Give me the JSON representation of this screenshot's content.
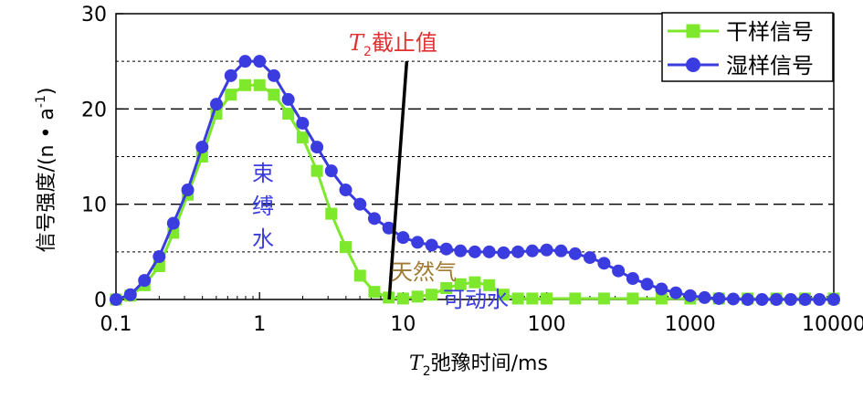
{
  "chart_data": {
    "type": "line",
    "title": "",
    "xlabel": {
      "italic": "T",
      "sub": "2",
      "rest": "弛豫时间/ms"
    },
    "ylabel": {
      "main": "信号强度/(n • a",
      "sup": "-1",
      "end": ")"
    },
    "x_scale": "log",
    "xlim": [
      0.1,
      10000
    ],
    "ylim": [
      0,
      30
    ],
    "x_ticks": [
      0.1,
      1,
      10,
      100,
      1000,
      10000
    ],
    "x_tick_labels": [
      "0.1",
      "1",
      "10",
      "100",
      "1000",
      "10000"
    ],
    "y_ticks": [
      0,
      10,
      20,
      30
    ],
    "y_tick_labels": [
      "0",
      "10",
      "20",
      "30"
    ],
    "grid_major_y": [
      10,
      20
    ],
    "grid_minor_y": [
      5,
      15,
      25
    ],
    "legend_position": "top-right",
    "series": [
      {
        "name": "干样信号",
        "color": "#7de82c",
        "marker": "square",
        "x": [
          0.1,
          0.126,
          0.158,
          0.2,
          0.251,
          0.316,
          0.398,
          0.501,
          0.631,
          0.794,
          1.0,
          1.259,
          1.585,
          1.995,
          2.512,
          3.162,
          3.981,
          5.012,
          6.31,
          7.943,
          10,
          12.6,
          15.8,
          20,
          25.1,
          31.6,
          39.8,
          50.1,
          63.1,
          79.4,
          100,
          158,
          251,
          398,
          631,
          1000,
          1585,
          2512,
          3981,
          6310,
          10000
        ],
        "y": [
          0,
          0.4,
          1.5,
          3.5,
          7.0,
          11.0,
          15.0,
          19.5,
          21.5,
          22.5,
          22.5,
          21.5,
          19.5,
          17.0,
          13.5,
          9.0,
          5.5,
          2.5,
          0.8,
          0.2,
          0.1,
          0.3,
          0.5,
          1.2,
          1.6,
          1.8,
          1.5,
          0.5,
          0.1,
          0.1,
          0.1,
          0.1,
          0.1,
          0.1,
          0.1,
          0.1,
          0.1,
          0.1,
          0.1,
          0.1,
          0.1
        ]
      },
      {
        "name": "湿样信号",
        "color": "#3b3ce0",
        "marker": "circle",
        "x": [
          0.1,
          0.126,
          0.158,
          0.2,
          0.251,
          0.316,
          0.398,
          0.501,
          0.631,
          0.794,
          1.0,
          1.259,
          1.585,
          1.995,
          2.512,
          3.162,
          3.981,
          5.012,
          6.31,
          7.943,
          10,
          12.6,
          15.8,
          20,
          25.1,
          31.6,
          39.8,
          50.1,
          63.1,
          79.4,
          100,
          126,
          158,
          200,
          251,
          316,
          398,
          501,
          631,
          794,
          1000,
          1259,
          1585,
          1995,
          2512,
          3162,
          3981,
          5012,
          6310,
          7943,
          10000
        ],
        "y": [
          0,
          0.5,
          2.0,
          4.5,
          8.0,
          11.5,
          16.0,
          20.5,
          23.5,
          25.0,
          25.0,
          23.5,
          21.0,
          18.5,
          16.0,
          13.5,
          11.5,
          10.0,
          8.5,
          7.5,
          6.5,
          6.0,
          5.7,
          5.3,
          5.1,
          5.0,
          5.0,
          4.9,
          5.0,
          5.1,
          5.2,
          5.1,
          4.8,
          4.4,
          3.8,
          3.0,
          2.2,
          1.6,
          1.1,
          0.7,
          0.4,
          0.2,
          0.1,
          0.05,
          0.0,
          0.0,
          0.0,
          0.0,
          0.0,
          0.0,
          0.0
        ]
      }
    ],
    "cutoff": {
      "x_bottom": 8.0,
      "x_top": 10.6,
      "y_bottom": 0,
      "y_top": 25,
      "color": "#000000"
    },
    "annotations": [
      {
        "text_italic": "T",
        "sub": "2",
        "text": "截止值",
        "color": "#e03030"
      },
      {
        "text": "束",
        "color": "#3b3ce0"
      },
      {
        "text": "缚",
        "color": "#3b3ce0"
      },
      {
        "text": "水",
        "color": "#3b3ce0"
      },
      {
        "text": "天然气",
        "color": "#a07a30"
      },
      {
        "text": "可动水",
        "color": "#3b3ce0"
      }
    ]
  }
}
